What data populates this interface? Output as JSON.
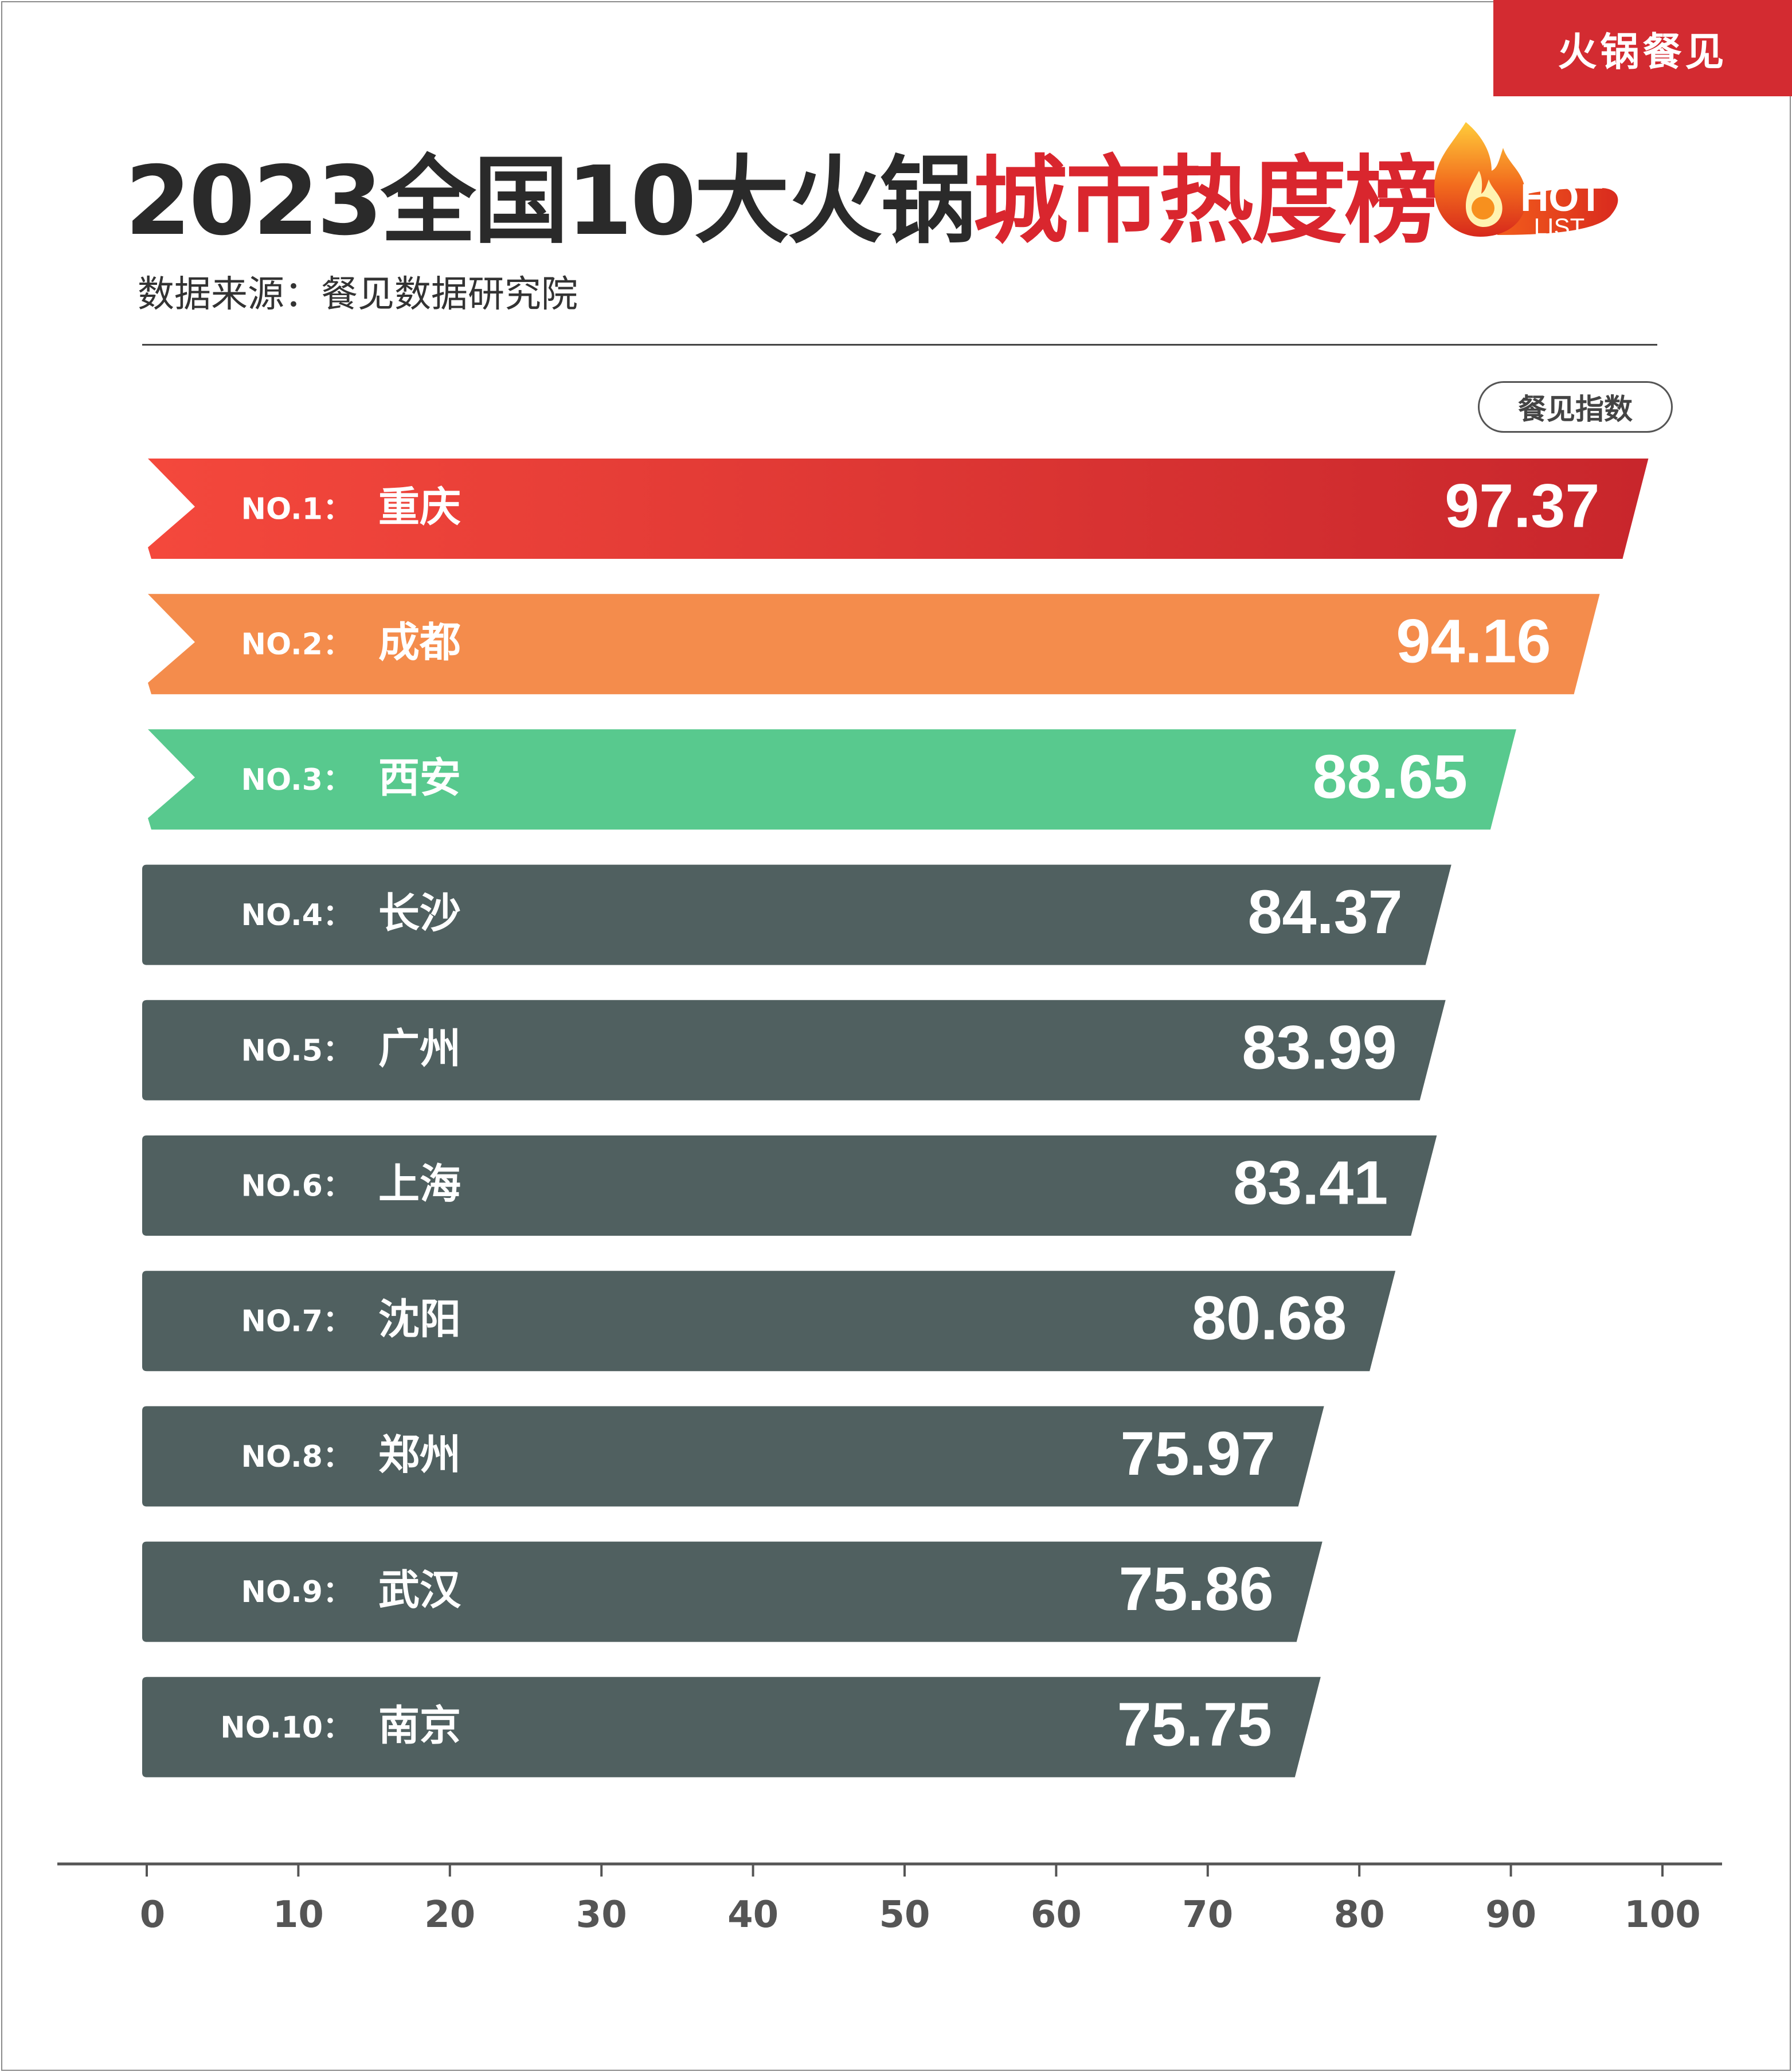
{
  "brand": "火锅餐见",
  "title": {
    "main": "2023全国10大火锅",
    "highlight": "城市热度榜"
  },
  "badge": {
    "line1": "HOT",
    "line2": "LIST"
  },
  "source": "数据来源：餐见数据研究院",
  "index_label": "餐见指数",
  "colors": {
    "top1_start": "#f4483c",
    "top1_end": "#c8262c",
    "top2": "#f48c4c",
    "top3": "#58c98e",
    "rest": "#506060",
    "brand": "#d32b31"
  },
  "chart_data": {
    "type": "bar",
    "orientation": "horizontal",
    "categories": [
      "NO.1：重庆",
      "NO.2：成都",
      "NO.3：西安",
      "NO.4：长沙",
      "NO.5：广州",
      "NO.6：上海",
      "NO.7：沈阳",
      "NO.8：郑州",
      "NO.9：武汉",
      "NO.10：南京"
    ],
    "ranks": [
      "NO.1：",
      "NO.2：",
      "NO.3：",
      "NO.4：",
      "NO.5：",
      "NO.6：",
      "NO.7：",
      "NO.8：",
      "NO.9：",
      "NO.10："
    ],
    "cities": [
      "重庆",
      "成都",
      "西安",
      "长沙",
      "广州",
      "上海",
      "沈阳",
      "郑州",
      "武汉",
      "南京"
    ],
    "values": [
      97.37,
      94.16,
      88.65,
      84.37,
      83.99,
      83.41,
      80.68,
      75.97,
      75.86,
      75.75
    ],
    "value_labels": [
      "97.37",
      "94.16",
      "88.65",
      "84.37",
      "83.99",
      "83.41",
      "80.68",
      "75.97",
      "75.86",
      "75.75"
    ],
    "xlim": [
      0,
      100
    ],
    "xticks": [
      0,
      10,
      20,
      30,
      40,
      50,
      60,
      70,
      80,
      90,
      100
    ],
    "grid": false
  }
}
